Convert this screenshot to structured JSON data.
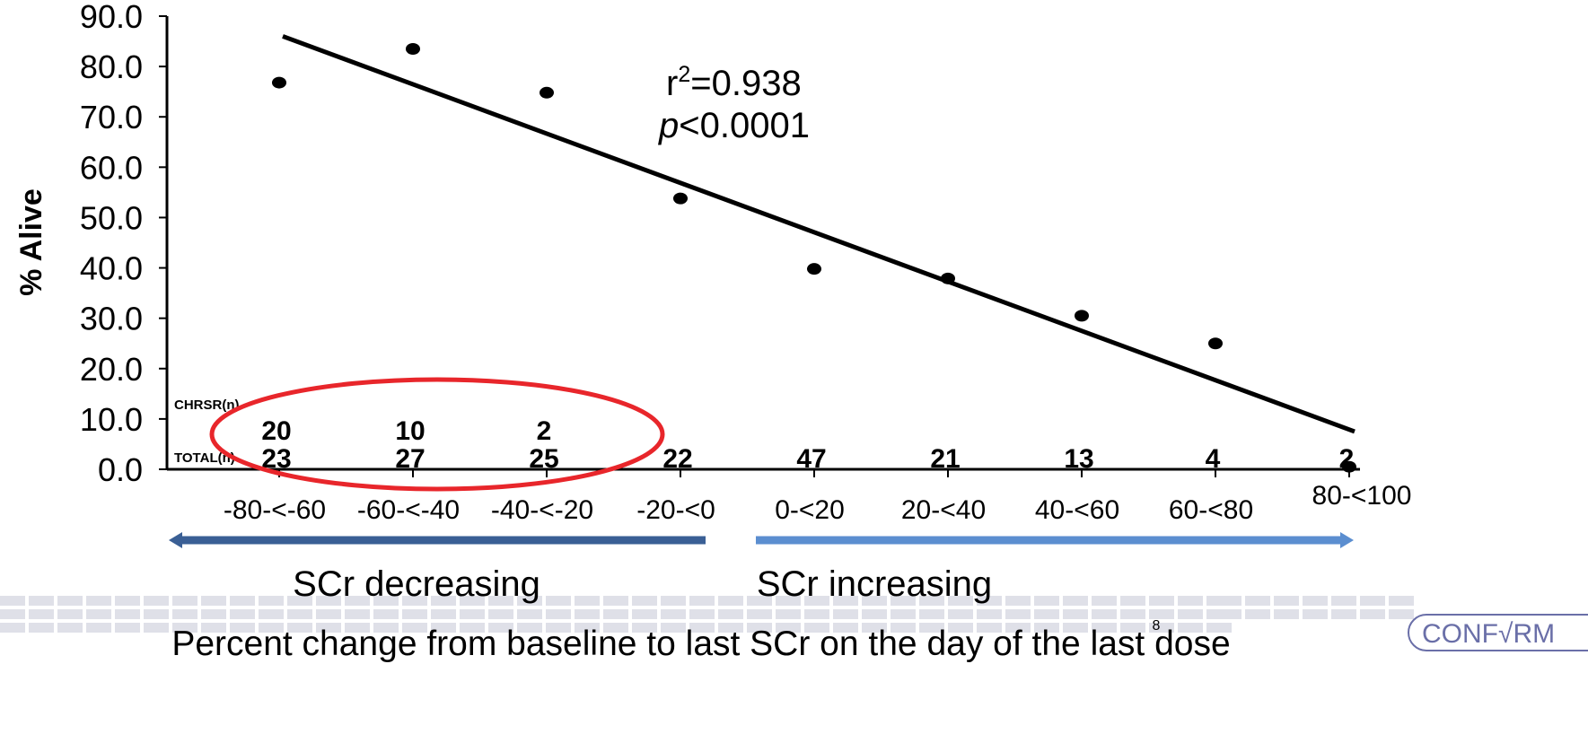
{
  "chart_data": {
    "type": "scatter",
    "ylabel": "% Alive",
    "xlabel": "Percent change from baseline to last SCr on the day of the last dose",
    "ylim": [
      0,
      90
    ],
    "y_ticks": [
      "0.0",
      "10.0",
      "20.0",
      "30.0",
      "40.0",
      "50.0",
      "60.0",
      "70.0",
      "80.0",
      "90.0"
    ],
    "y_tick_values": [
      0,
      10,
      20,
      30,
      40,
      50,
      60,
      70,
      80,
      90
    ],
    "categories": [
      "-80-<-60",
      "-60-<-40",
      "-40-<-20",
      "-20-<0",
      "0-<20",
      "20-<40",
      "40-<60",
      "60-<80",
      "80-<100"
    ],
    "values": [
      76.8,
      83.5,
      74.8,
      53.8,
      39.8,
      37.9,
      30.5,
      25.0,
      0.5
    ],
    "trendline": {
      "start": 86.0,
      "end": 7.5
    },
    "annotation_r2": {
      "base": "r",
      "sup": "2",
      "rest": "=0.938"
    },
    "annotation_p": {
      "italic": "p",
      "rest": "<0.0001"
    },
    "chrsr_label": "CHRSR(n)",
    "chrsr_values": [
      "20",
      "10",
      "2",
      "",
      "",
      "",
      "",
      "",
      ""
    ],
    "total_label": "TOTAL(n)",
    "total_values": [
      "23",
      "27",
      "25",
      "22",
      "47",
      "21",
      "13",
      "4",
      "2"
    ],
    "group_left": "SCr decreasing",
    "group_right": "SCr increasing",
    "page_number": "8",
    "logo_text": "CONF√RM",
    "colors": {
      "ink": "#000000",
      "highlight": "#e8262b",
      "arrow_left": "#3a5f95",
      "arrow_right": "#5b8ed0",
      "logo": "#6a6fa8",
      "footer_grid": "#dfe0e8"
    }
  }
}
